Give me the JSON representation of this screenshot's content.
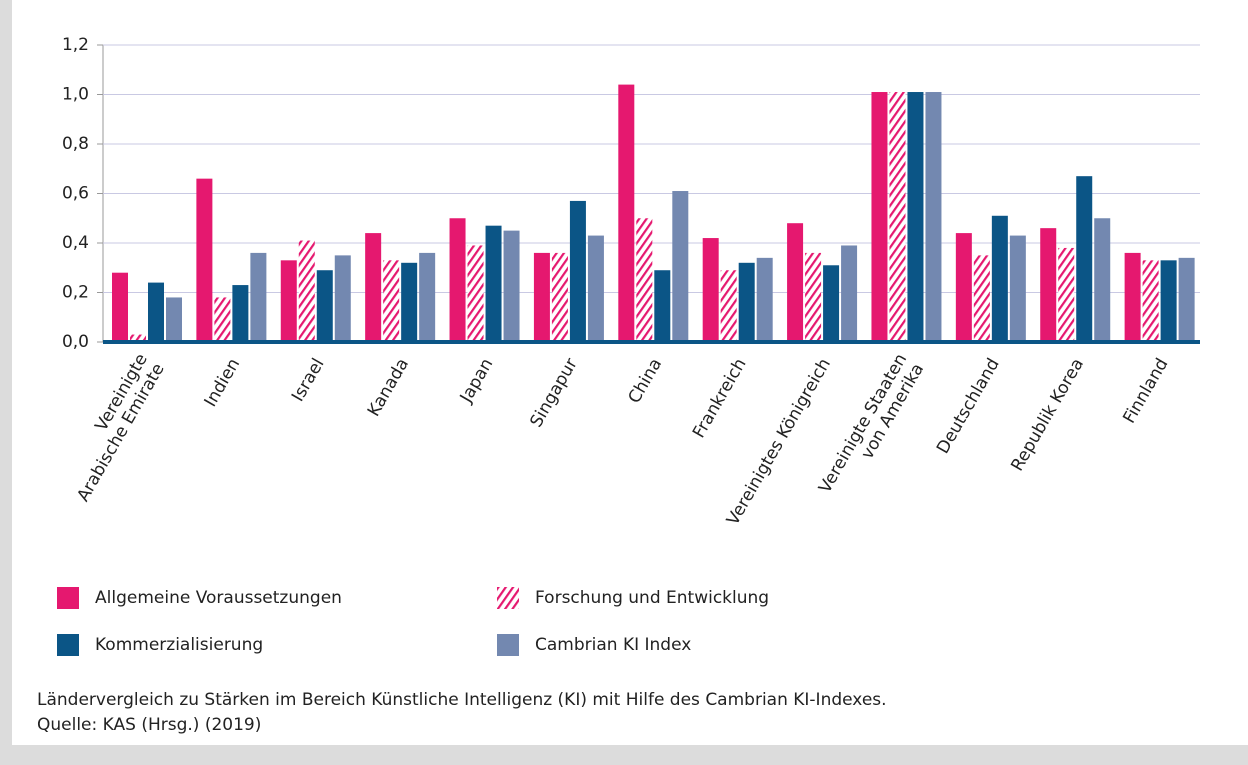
{
  "chart_data": {
    "type": "bar",
    "categories": [
      [
        "Vereinigte",
        "Arabische Emirate"
      ],
      [
        "Indien"
      ],
      [
        "Israel"
      ],
      [
        "Kanada"
      ],
      [
        "Japan"
      ],
      [
        "Singapur"
      ],
      [
        "China"
      ],
      [
        "Frankreich"
      ],
      [
        "Vereinigtes Königreich"
      ],
      [
        "Vereinigte Staaten",
        "von Amerika"
      ],
      [
        "Deutschland"
      ],
      [
        "Republik Korea"
      ],
      [
        "Finnland"
      ]
    ],
    "series": [
      {
        "name": "Allgemeine Voraussetzungen",
        "color": "#e5186f",
        "hatch": false,
        "values": [
          0.28,
          0.66,
          0.33,
          0.44,
          0.5,
          0.36,
          1.04,
          0.42,
          0.48,
          1.01,
          0.44,
          0.46,
          0.36
        ]
      },
      {
        "name": "Forschung und Entwicklung",
        "color": "#e5186f",
        "hatch": true,
        "values": [
          0.03,
          0.18,
          0.41,
          0.33,
          0.39,
          0.36,
          0.5,
          0.29,
          0.36,
          1.01,
          0.35,
          0.38,
          0.33
        ]
      },
      {
        "name": "Kommerzialisierung",
        "color": "#0b5586",
        "hatch": false,
        "values": [
          0.24,
          0.23,
          0.29,
          0.32,
          0.47,
          0.57,
          0.29,
          0.32,
          0.31,
          1.01,
          0.51,
          0.67,
          0.33
        ]
      },
      {
        "name": "Cambrian KI Index",
        "color": "#7388b0",
        "hatch": false,
        "values": [
          0.18,
          0.36,
          0.35,
          0.36,
          0.45,
          0.43,
          0.61,
          0.34,
          0.39,
          1.01,
          0.43,
          0.5,
          0.34
        ]
      }
    ],
    "ylim": [
      0,
      1.2
    ],
    "yticks": [
      {
        "value": 0,
        "label": "0,0"
      },
      {
        "value": 0.2,
        "label": "0,2"
      },
      {
        "value": 0.4,
        "label": "0,4"
      },
      {
        "value": 0.6,
        "label": "0,6"
      },
      {
        "value": 0.8,
        "label": "0,8"
      },
      {
        "value": 1.0,
        "label": "1,0"
      },
      {
        "value": 1.2,
        "label": "1,2"
      }
    ],
    "grid": true,
    "caption": "Ländervergleich zu Stärken im Bereich Künstliche Intelligenz (KI) mit Hilfe des Cambrian KI-Indexes.",
    "source": "Quelle: KAS (Hrsg.) (2019)"
  }
}
